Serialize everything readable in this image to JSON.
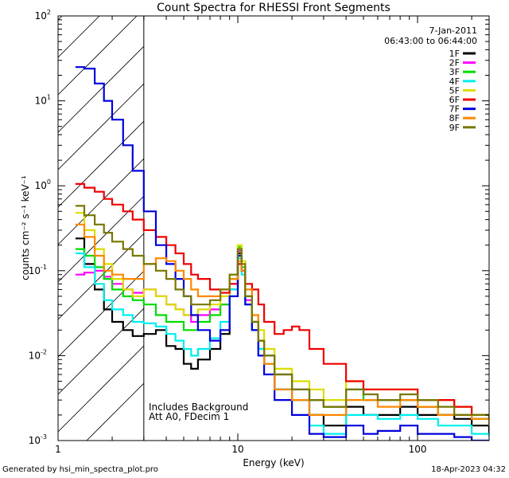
{
  "chart_data": {
    "type": "line",
    "title": "Count Spectra for RHESSI Front Segments",
    "xlabel": "Energy (keV)",
    "ylabel": "counts cm⁻² s⁻¹ keV⁻¹",
    "x_scale": "log",
    "y_scale": "log",
    "xlim": [
      1,
      250
    ],
    "ylim": [
      0.001,
      100
    ],
    "x_ticks": [
      {
        "value": 1,
        "label": "1"
      },
      {
        "value": 10,
        "label": "10"
      },
      {
        "value": 100,
        "label": "100"
      }
    ],
    "y_ticks": [
      {
        "value": 0.001,
        "base": "10",
        "exp": "-3"
      },
      {
        "value": 0.01,
        "base": "10",
        "exp": "-2"
      },
      {
        "value": 0.1,
        "base": "10",
        "exp": "-1"
      },
      {
        "value": 1,
        "base": "10",
        "exp": "0"
      },
      {
        "value": 10,
        "base": "10",
        "exp": "1"
      },
      {
        "value": 100,
        "base": "10",
        "exp": "2"
      }
    ],
    "date": "7-Jan-2011",
    "time_range": "06:43:00 to 06:44:00",
    "excluded_region_kev": [
      1,
      3
    ],
    "annotations": [
      "Includes Background",
      "Att A0, FDecim 1"
    ],
    "series": [
      {
        "name": "1F",
        "color": "#000000",
        "x": [
          1.25,
          1.4,
          1.6,
          1.8,
          2.0,
          2.3,
          2.6,
          3.0,
          3.5,
          4.0,
          4.5,
          5.0,
          5.5,
          6.0,
          7.0,
          8.0,
          9.0,
          10.0,
          10.5,
          11.0,
          12.0,
          13.0,
          14.0,
          16.0,
          20.0,
          25.0,
          30.0,
          40.0,
          50.0,
          60.0,
          80.0,
          100.0,
          130.0,
          160.0,
          200.0,
          250.0
        ],
        "values": [
          0.24,
          0.12,
          0.06,
          0.035,
          0.025,
          0.02,
          0.017,
          0.018,
          0.02,
          0.013,
          0.012,
          0.008,
          0.007,
          0.009,
          0.012,
          0.018,
          0.06,
          0.16,
          0.1,
          0.04,
          0.02,
          0.012,
          0.008,
          0.004,
          0.003,
          0.002,
          0.0015,
          0.0025,
          0.002,
          0.002,
          0.0025,
          0.002,
          0.002,
          0.0018,
          0.0015,
          0.0012
        ]
      },
      {
        "name": "2F",
        "color": "#ff00ff",
        "x": [
          1.25,
          1.4,
          1.6,
          1.8,
          2.0,
          2.3,
          2.6,
          3.0,
          3.5,
          4.0,
          4.5,
          5.0,
          5.5,
          6.0,
          7.0,
          8.0,
          9.0,
          10.0,
          10.5,
          11.0,
          12.0,
          13.0,
          14.0,
          16.0,
          20.0,
          25.0,
          30.0,
          40.0,
          50.0,
          60.0,
          80.0,
          100.0,
          130.0,
          160.0,
          200.0,
          250.0
        ],
        "values": [
          0.09,
          0.095,
          0.1,
          0.085,
          0.07,
          0.06,
          0.055,
          0.06,
          0.05,
          0.04,
          0.035,
          0.03,
          0.025,
          0.03,
          0.035,
          0.04,
          0.07,
          0.17,
          0.1,
          0.045,
          0.025,
          0.015,
          0.01,
          0.006,
          0.004,
          0.003,
          0.0025,
          0.004,
          0.003,
          0.003,
          0.003,
          0.0025,
          0.002,
          0.002,
          0.0018,
          0.0015
        ]
      },
      {
        "name": "3F",
        "color": "#00dd00",
        "x": [
          1.25,
          1.4,
          1.6,
          1.8,
          2.0,
          2.3,
          2.6,
          3.0,
          3.5,
          4.0,
          4.5,
          5.0,
          5.5,
          6.0,
          7.0,
          8.0,
          9.0,
          10.0,
          10.5,
          11.0,
          12.0,
          13.0,
          14.0,
          16.0,
          20.0,
          25.0,
          30.0,
          40.0,
          50.0,
          60.0,
          80.0,
          100.0,
          130.0,
          160.0,
          200.0,
          250.0
        ],
        "values": [
          0.18,
          0.15,
          0.11,
          0.08,
          0.06,
          0.05,
          0.045,
          0.04,
          0.03,
          0.025,
          0.025,
          0.02,
          0.02,
          0.025,
          0.03,
          0.04,
          0.08,
          0.19,
          0.11,
          0.05,
          0.025,
          0.015,
          0.01,
          0.006,
          0.004,
          0.003,
          0.0025,
          0.004,
          0.003,
          0.003,
          0.003,
          0.0025,
          0.002,
          0.002,
          0.0018,
          0.0015
        ]
      },
      {
        "name": "4F",
        "color": "#00eeee",
        "x": [
          1.25,
          1.4,
          1.6,
          1.8,
          2.0,
          2.3,
          2.6,
          3.0,
          3.5,
          4.0,
          4.5,
          5.0,
          5.5,
          6.0,
          7.0,
          8.0,
          9.0,
          10.0,
          10.5,
          11.0,
          12.0,
          13.0,
          14.0,
          16.0,
          20.0,
          25.0,
          30.0,
          40.0,
          50.0,
          60.0,
          80.0,
          100.0,
          130.0,
          160.0,
          200.0,
          250.0
        ],
        "values": [
          0.16,
          0.11,
          0.07,
          0.045,
          0.035,
          0.03,
          0.025,
          0.024,
          0.022,
          0.018,
          0.015,
          0.012,
          0.01,
          0.012,
          0.016,
          0.025,
          0.06,
          0.14,
          0.09,
          0.04,
          0.02,
          0.012,
          0.008,
          0.004,
          0.003,
          0.0015,
          0.0012,
          0.002,
          0.002,
          0.0018,
          0.002,
          0.0018,
          0.0015,
          0.0015,
          0.0012,
          0.0011
        ]
      },
      {
        "name": "5F",
        "color": "#dddd00",
        "x": [
          1.25,
          1.4,
          1.6,
          1.8,
          2.0,
          2.3,
          2.6,
          3.0,
          3.5,
          4.0,
          4.5,
          5.0,
          5.5,
          6.0,
          7.0,
          8.0,
          9.0,
          10.0,
          10.5,
          11.0,
          12.0,
          13.0,
          14.0,
          16.0,
          20.0,
          25.0,
          30.0,
          40.0,
          50.0,
          60.0,
          80.0,
          100.0,
          130.0,
          160.0,
          200.0,
          250.0
        ],
        "values": [
          0.48,
          0.3,
          0.18,
          0.12,
          0.08,
          0.06,
          0.05,
          0.06,
          0.05,
          0.04,
          0.035,
          0.03,
          0.03,
          0.035,
          0.04,
          0.05,
          0.09,
          0.2,
          0.13,
          0.06,
          0.03,
          0.02,
          0.012,
          0.007,
          0.005,
          0.004,
          0.003,
          0.005,
          0.004,
          0.004,
          0.004,
          0.003,
          0.003,
          0.0025,
          0.002,
          0.0018
        ]
      },
      {
        "name": "6F",
        "color": "#ee0000",
        "x": [
          1.25,
          1.4,
          1.6,
          1.8,
          2.0,
          2.3,
          2.6,
          3.0,
          3.5,
          4.0,
          4.5,
          5.0,
          5.5,
          6.0,
          7.0,
          8.0,
          9.0,
          10.0,
          10.5,
          11.0,
          12.0,
          13.0,
          14.0,
          16.0,
          18.0,
          20.0,
          22.0,
          25.0,
          30.0,
          40.0,
          50.0,
          60.0,
          80.0,
          100.0,
          130.0,
          160.0,
          200.0,
          250.0
        ],
        "values": [
          1.05,
          0.95,
          0.85,
          0.7,
          0.6,
          0.5,
          0.4,
          0.3,
          0.25,
          0.2,
          0.16,
          0.12,
          0.09,
          0.08,
          0.06,
          0.055,
          0.07,
          0.12,
          0.1,
          0.07,
          0.06,
          0.04,
          0.025,
          0.018,
          0.02,
          0.022,
          0.02,
          0.012,
          0.008,
          0.005,
          0.004,
          0.004,
          0.004,
          0.003,
          0.003,
          0.0025,
          0.002,
          0.0018
        ]
      },
      {
        "name": "7F",
        "color": "#0000dd",
        "x": [
          1.25,
          1.4,
          1.6,
          1.8,
          2.0,
          2.3,
          2.6,
          3.0,
          3.5,
          4.0,
          4.5,
          5.0,
          5.5,
          6.0,
          7.0,
          8.0,
          9.0,
          10.0,
          10.5,
          11.0,
          12.0,
          13.0,
          14.0,
          16.0,
          20.0,
          25.0,
          30.0,
          40.0,
          50.0,
          60.0,
          80.0,
          100.0,
          130.0,
          160.0,
          200.0,
          250.0
        ],
        "values": [
          25.0,
          24.0,
          16.0,
          10.0,
          6.0,
          3.0,
          1.5,
          0.5,
          0.2,
          0.12,
          0.08,
          0.05,
          0.03,
          0.02,
          0.015,
          0.02,
          0.05,
          0.15,
          0.1,
          0.04,
          0.02,
          0.01,
          0.006,
          0.003,
          0.002,
          0.0012,
          0.0011,
          0.0015,
          0.0012,
          0.0013,
          0.0015,
          0.0012,
          0.0012,
          0.0011,
          0.001,
          0.001
        ]
      },
      {
        "name": "8F",
        "color": "#ff8800",
        "x": [
          1.25,
          1.4,
          1.6,
          1.8,
          2.0,
          2.3,
          2.6,
          3.0,
          3.5,
          4.0,
          4.5,
          5.0,
          5.5,
          6.0,
          7.0,
          8.0,
          9.0,
          10.0,
          10.5,
          11.0,
          12.0,
          13.0,
          14.0,
          16.0,
          20.0,
          25.0,
          30.0,
          40.0,
          50.0,
          60.0,
          80.0,
          100.0,
          130.0,
          160.0,
          200.0,
          250.0
        ],
        "values": [
          0.35,
          0.25,
          0.15,
          0.1,
          0.09,
          0.08,
          0.08,
          0.12,
          0.14,
          0.13,
          0.1,
          0.08,
          0.06,
          0.05,
          0.05,
          0.06,
          0.08,
          0.13,
          0.1,
          0.06,
          0.03,
          0.015,
          0.008,
          0.004,
          0.003,
          0.002,
          0.002,
          0.003,
          0.003,
          0.0025,
          0.003,
          0.0025,
          0.002,
          0.002,
          0.0018,
          0.0015
        ]
      },
      {
        "name": "9F",
        "color": "#777700",
        "x": [
          1.25,
          1.4,
          1.6,
          1.8,
          2.0,
          2.3,
          2.6,
          3.0,
          3.5,
          4.0,
          4.5,
          5.0,
          5.5,
          6.0,
          7.0,
          8.0,
          9.0,
          10.0,
          10.5,
          11.0,
          12.0,
          13.0,
          14.0,
          16.0,
          20.0,
          25.0,
          30.0,
          40.0,
          50.0,
          60.0,
          80.0,
          100.0,
          130.0,
          160.0,
          200.0,
          250.0
        ],
        "values": [
          0.58,
          0.45,
          0.35,
          0.28,
          0.22,
          0.18,
          0.15,
          0.12,
          0.1,
          0.08,
          0.06,
          0.05,
          0.04,
          0.04,
          0.045,
          0.06,
          0.09,
          0.18,
          0.12,
          0.05,
          0.025,
          0.015,
          0.01,
          0.006,
          0.004,
          0.003,
          0.0025,
          0.004,
          0.0035,
          0.003,
          0.0035,
          0.003,
          0.0025,
          0.002,
          0.002,
          0.0018
        ]
      }
    ]
  },
  "footer": {
    "generated_by": "Generated by hsi_min_spectra_plot.pro",
    "timestamp": "18-Apr-2023 04:32"
  }
}
